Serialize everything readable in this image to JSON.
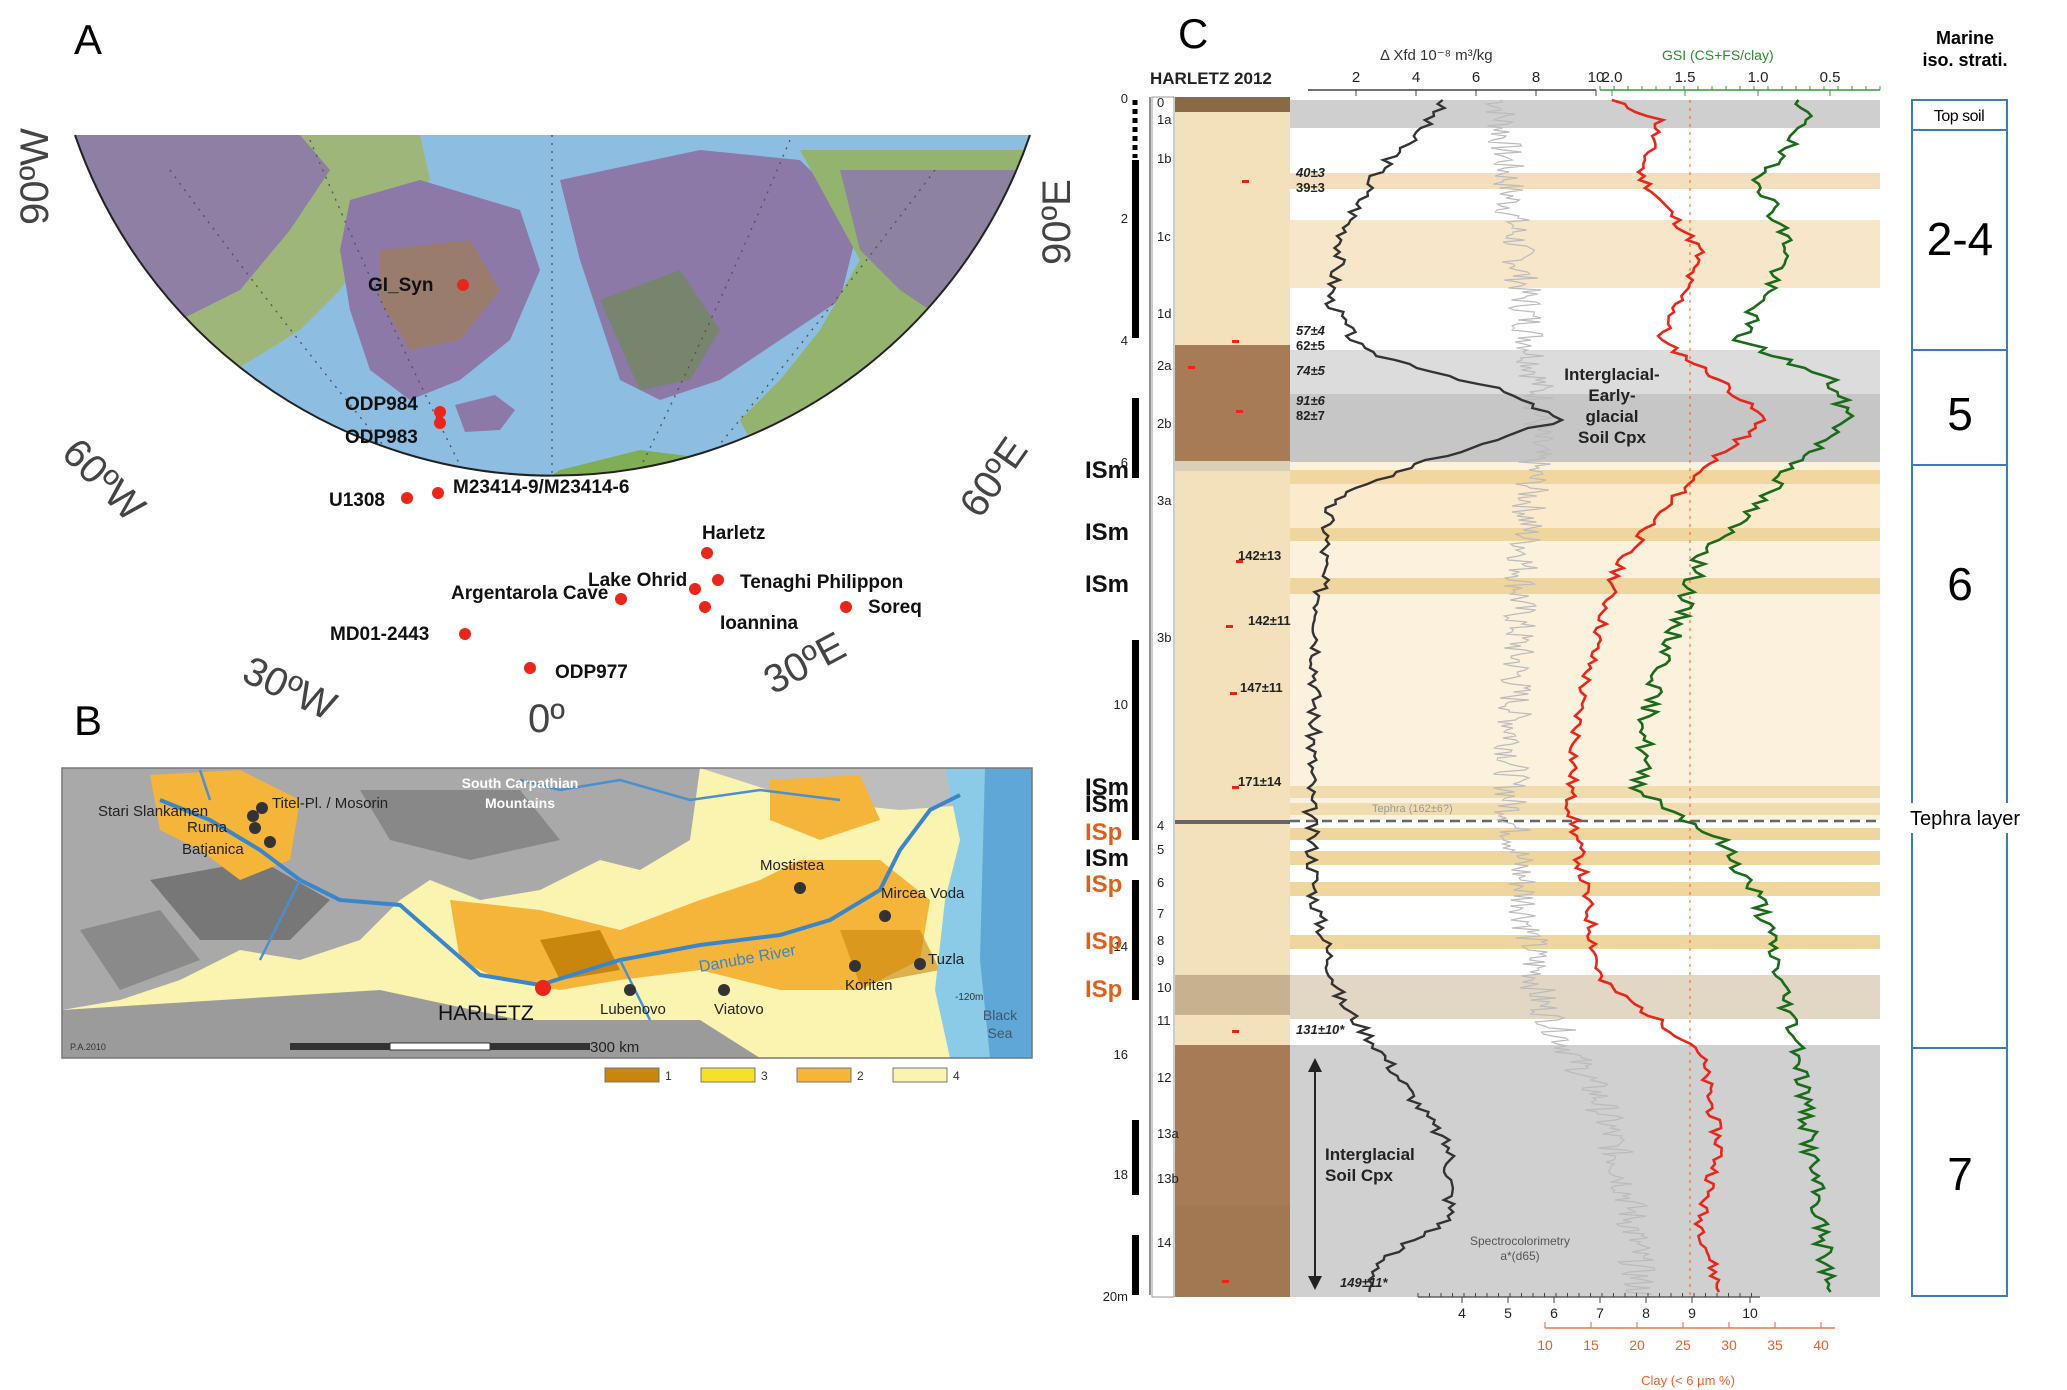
{
  "panels": {
    "a": "A",
    "b": "B",
    "c": "C"
  },
  "map_a": {
    "graticule": {
      "w90": "90ºW",
      "w60": "60ºW",
      "w30": "30ºW",
      "zero": "0º",
      "e30": "30ºE",
      "e60": "60ºE",
      "e90": "90ºE"
    },
    "sites": [
      {
        "name": "GI_Syn"
      },
      {
        "name": "ODP984"
      },
      {
        "name": "ODP983"
      },
      {
        "name": "U1308"
      },
      {
        "name": "M23414-9/M23414-6"
      },
      {
        "name": "Harletz"
      },
      {
        "name": "Lake Ohrid"
      },
      {
        "name": "Tenaghi Philippon"
      },
      {
        "name": "Argentarola Cave"
      },
      {
        "name": "Ioannina"
      },
      {
        "name": "Soreq"
      },
      {
        "name": "MD01-2443"
      },
      {
        "name": "ODP977"
      }
    ],
    "colors": {
      "site": "#e8261a",
      "ocean": "#7fb4dc",
      "ice": "#8c79a8"
    }
  },
  "map_b": {
    "region": "South Carpathian\nMountains",
    "region_line1": "South Carpathian",
    "region_line2": "Mountains",
    "river": "Danube River",
    "sea_line1": "Black",
    "sea_line2": "Sea",
    "depth": "-120m",
    "credit": "P.A.2010",
    "scale": "300 km",
    "main_site": "HARLETZ",
    "sites": [
      {
        "name": "Stari Slankamen"
      },
      {
        "name": "Titel-Pl. / Mosorin"
      },
      {
        "name": "Ruma"
      },
      {
        "name": "Batjanica"
      },
      {
        "name": "Mostistea"
      },
      {
        "name": "Mircea Voda"
      },
      {
        "name": "Tuzla"
      },
      {
        "name": "Koriten"
      },
      {
        "name": "Lubenovo"
      },
      {
        "name": "Viatovo"
      }
    ],
    "legend": [
      {
        "label": "1",
        "color": "#c8860e"
      },
      {
        "label": "3",
        "color": "#f5e02a"
      },
      {
        "label": "2",
        "color": "#f5b43a"
      },
      {
        "label": "4",
        "color": "#fbf3b0"
      }
    ]
  },
  "profile_c": {
    "title": "HARLETZ 2012",
    "axis_top_xfd": "Δ Xfd 10⁻⁸ m³/kg",
    "axis_top_xfd_ticks": [
      "2",
      "4",
      "6",
      "8",
      "10"
    ],
    "axis_top_gsi": "GSI (CS+FS/clay)",
    "axis_top_gsi_ticks": [
      "2.0",
      "1.5",
      "1.0",
      "0.5"
    ],
    "axis_bottom_astar_ticks": [
      "4",
      "5",
      "6",
      "7",
      "8",
      "9",
      "10"
    ],
    "axis_bottom_clay": "Clay (< 6 µm %)",
    "axis_bottom_clay_ticks": [
      "10",
      "15",
      "20",
      "25",
      "30",
      "35",
      "40"
    ],
    "depth_ticks": [
      "0",
      "2",
      "4",
      "6",
      "10",
      "14",
      "16",
      "18",
      "20m"
    ],
    "horizons": [
      "0",
      "1a",
      "1b",
      "1c",
      "1d",
      "2a",
      "2b",
      "3a",
      "3b",
      "4",
      "5",
      "6",
      "7",
      "8",
      "9",
      "10",
      "11",
      "12",
      "13a",
      "13b",
      "14"
    ],
    "dates": [
      "40±3",
      "39±3",
      "57±4",
      "62±5",
      "74±5",
      "91±6",
      "82±7",
      "142±13",
      "142±11",
      "147±11",
      "171±14",
      "131±10*",
      "149±11*"
    ],
    "tephra_in_plot": "Tephra (162±6?)",
    "annotation_early": [
      "Interglacial-",
      "Early-",
      "glacial",
      "Soil Cpx"
    ],
    "annotation_interglacial": [
      "Interglacial",
      "Soil Cpx"
    ],
    "annotation_spectro": [
      "Spectrocolorimetry",
      "a*(d65)"
    ],
    "is_labels": [
      {
        "text": "ISm",
        "color": "#111111"
      },
      {
        "text": "ISm",
        "color": "#111111"
      },
      {
        "text": "ISm",
        "color": "#111111"
      },
      {
        "text": "ISm",
        "color": "#111111"
      },
      {
        "text": "ISm",
        "color": "#111111"
      },
      {
        "text": "ISp",
        "color": "#e0601a"
      },
      {
        "text": "ISm",
        "color": "#111111"
      },
      {
        "text": "ISp",
        "color": "#e0601a"
      },
      {
        "text": "ISp",
        "color": "#e0601a"
      },
      {
        "text": "ISp",
        "color": "#e0601a"
      }
    ],
    "colors": {
      "xfd": "#333333",
      "gsi": "#e8261a",
      "astar": "#1a6b1a",
      "clay_axis": "#e8602a",
      "gsi_axis": "#3a9a3a"
    }
  },
  "mis": {
    "header_line1": "Marine",
    "header_line2": "iso. strati.",
    "topsoil": "Top soil",
    "stages": [
      "2-4",
      "5",
      "6",
      "7"
    ],
    "tephra": "Tephra layer"
  }
}
